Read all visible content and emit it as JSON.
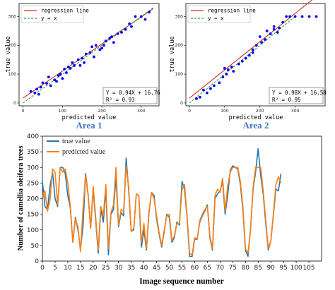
{
  "colors": {
    "regression": "#d62728",
    "identity": "#2ca02c",
    "points": "#0000ff",
    "true_line": "#1f77b4",
    "pred_line": "#ff7f0e",
    "area_caption": "#4472c4"
  },
  "chart_data": [
    {
      "type": "scatter",
      "caption": "Area 1",
      "xlabel": "predicted value",
      "ylabel": "true value",
      "xlim": [
        -10,
        345
      ],
      "ylim": [
        -10,
        345
      ],
      "xticks": [
        0,
        100,
        200,
        300
      ],
      "yticks": [
        0,
        100,
        200,
        300
      ],
      "legend": {
        "position": "upper-left",
        "entries": [
          "regression line",
          "y = x"
        ]
      },
      "fit_text": [
        "Y = 0.94X + 16.76",
        "R² = 0.93"
      ],
      "regression": {
        "slope": 0.94,
        "intercept": 16.76,
        "x_range": [
          0,
          330
        ]
      },
      "identity_range": [
        0,
        330
      ],
      "points": [
        [
          20,
          40
        ],
        [
          30,
          35
        ],
        [
          35,
          48
        ],
        [
          45,
          55
        ],
        [
          50,
          70
        ],
        [
          60,
          68
        ],
        [
          70,
          60
        ],
        [
          80,
          80
        ],
        [
          85,
          75
        ],
        [
          95,
          100
        ],
        [
          100,
          85
        ],
        [
          105,
          118
        ],
        [
          110,
          105
        ],
        [
          115,
          125
        ],
        [
          125,
          140
        ],
        [
          130,
          130
        ],
        [
          140,
          150
        ],
        [
          145,
          130
        ],
        [
          150,
          155
        ],
        [
          160,
          170
        ],
        [
          170,
          175
        ],
        [
          175,
          195
        ],
        [
          180,
          160
        ],
        [
          195,
          185
        ],
        [
          205,
          200
        ],
        [
          210,
          215
        ],
        [
          220,
          225
        ],
        [
          230,
          210
        ],
        [
          240,
          240
        ],
        [
          250,
          245
        ],
        [
          260,
          255
        ],
        [
          270,
          275
        ],
        [
          275,
          265
        ],
        [
          285,
          300
        ],
        [
          300,
          300
        ],
        [
          310,
          290
        ],
        [
          320,
          315
        ],
        [
          90,
          95
        ],
        [
          120,
          120
        ],
        [
          200,
          190
        ],
        [
          40,
          30
        ],
        [
          65,
          90
        ],
        [
          155,
          140
        ],
        [
          185,
          200
        ],
        [
          225,
          230
        ]
      ]
    },
    {
      "type": "scatter",
      "caption": "Area 2",
      "xlabel": "predicted value",
      "ylabel": "true value",
      "xlim": [
        -10,
        385
      ],
      "ylim": [
        -10,
        345
      ],
      "xticks": [
        0,
        100,
        200,
        300
      ],
      "yticks": [
        0,
        100,
        200,
        300
      ],
      "legend": {
        "position": "upper-left",
        "entries": [
          "regression line",
          "y = x"
        ]
      },
      "fit_text": [
        "Y = 0.98X + 16.58",
        "R² = 0.95"
      ],
      "regression": {
        "slope": 0.98,
        "intercept": 16.58,
        "x_range": [
          0,
          370
        ]
      },
      "identity_range": [
        0,
        300
      ],
      "points": [
        [
          20,
          15
        ],
        [
          30,
          20
        ],
        [
          50,
          35
        ],
        [
          60,
          50
        ],
        [
          70,
          60
        ],
        [
          85,
          70
        ],
        [
          95,
          90
        ],
        [
          105,
          100
        ],
        [
          110,
          115
        ],
        [
          120,
          125
        ],
        [
          125,
          110
        ],
        [
          140,
          135
        ],
        [
          150,
          145
        ],
        [
          160,
          155
        ],
        [
          170,
          165
        ],
        [
          180,
          185
        ],
        [
          190,
          200
        ],
        [
          200,
          230
        ],
        [
          205,
          210
        ],
        [
          215,
          220
        ],
        [
          220,
          250
        ],
        [
          230,
          240
        ],
        [
          240,
          265
        ],
        [
          250,
          245
        ],
        [
          255,
          260
        ],
        [
          265,
          280
        ],
        [
          275,
          300
        ],
        [
          285,
          300
        ],
        [
          300,
          300
        ],
        [
          320,
          300
        ],
        [
          340,
          300
        ],
        [
          360,
          300
        ],
        [
          100,
          120
        ],
        [
          180,
          175
        ],
        [
          40,
          45
        ],
        [
          240,
          255
        ]
      ]
    },
    {
      "type": "line",
      "xlabel": "Image sequence number",
      "ylabel": "Number of camellia oleifera trees",
      "xlim": [
        0,
        110
      ],
      "ylim": [
        0,
        400
      ],
      "xticks": [
        0,
        5,
        10,
        15,
        20,
        25,
        30,
        35,
        40,
        45,
        50,
        55,
        60,
        65,
        70,
        75,
        80,
        85,
        90,
        95,
        100,
        105
      ],
      "yticks": [
        0,
        50,
        100,
        150,
        200,
        250,
        300,
        350,
        400
      ],
      "legend": {
        "position": "top-left"
      },
      "series": [
        {
          "name": "true value",
          "values": [
            255,
            175,
            165,
            240,
            285,
            200,
            175,
            300,
            300,
            280,
            210,
            170,
            60,
            140,
            100,
            40,
            110,
            280,
            215,
            105,
            230,
            130,
            25,
            165,
            125,
            230,
            20,
            150,
            165,
            270,
            110,
            155,
            145,
            330,
            225,
            95,
            100,
            215,
            210,
            45,
            100,
            35,
            155,
            220,
            210,
            135,
            85,
            45,
            95,
            150,
            140,
            60,
            75,
            125,
            115,
            255,
            230,
            140,
            15,
            15,
            70,
            70,
            125,
            145,
            160,
            180,
            75,
            35,
            200,
            215,
            225,
            255,
            150,
            210,
            290,
            305,
            300,
            295,
            245,
            165,
            35,
            15,
            100,
            230,
            285,
            360,
            275,
            215,
            120,
            35,
            65,
            145,
            230,
            225,
            280
          ]
        },
        {
          "name": "predicted value",
          "values": [
            210,
            225,
            160,
            195,
            295,
            285,
            180,
            300,
            285,
            295,
            250,
            175,
            60,
            135,
            110,
            30,
            165,
            275,
            210,
            105,
            240,
            140,
            35,
            175,
            145,
            245,
            40,
            155,
            180,
            300,
            115,
            165,
            160,
            305,
            235,
            95,
            105,
            215,
            210,
            60,
            120,
            40,
            160,
            220,
            200,
            145,
            90,
            50,
            100,
            145,
            150,
            65,
            80,
            120,
            120,
            230,
            245,
            145,
            25,
            20,
            75,
            70,
            130,
            150,
            165,
            175,
            80,
            40,
            210,
            230,
            220,
            265,
            160,
            240,
            285,
            300,
            300,
            300,
            255,
            175,
            40,
            25,
            100,
            235,
            300,
            300,
            300,
            225,
            130,
            40,
            65,
            150,
            245,
            270,
            250
          ]
        }
      ]
    }
  ]
}
